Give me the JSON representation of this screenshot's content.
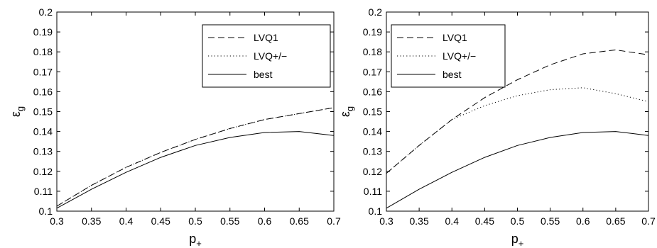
{
  "chart_data": [
    {
      "type": "line",
      "xlabel": "p",
      "xlabel_sub": "+",
      "ylabel": "ε",
      "ylabel_sub": "g",
      "xlim": [
        0.3,
        0.7
      ],
      "ylim": [
        0.1,
        0.2
      ],
      "x_ticks": [
        "0.3",
        "0.35",
        "0.4",
        "0.45",
        "0.5",
        "0.55",
        "0.6",
        "0.65",
        "0.7"
      ],
      "y_ticks": [
        "0.1",
        "0.11",
        "0.12",
        "0.13",
        "0.14",
        "0.15",
        "0.16",
        "0.17",
        "0.18",
        "0.19",
        "0.2"
      ],
      "grid": false,
      "legend_position": "top-right",
      "x": [
        0.3,
        0.35,
        0.4,
        0.45,
        0.5,
        0.55,
        0.6,
        0.65,
        0.7
      ],
      "series": [
        {
          "name": "LVQ1",
          "line_style": "dashed",
          "values": [
            0.1025,
            0.113,
            0.122,
            0.1295,
            0.136,
            0.1415,
            0.146,
            0.149,
            0.152
          ]
        },
        {
          "name": "LVQ+/−",
          "line_style": "dotted",
          "values": [
            0.1025,
            0.113,
            0.122,
            0.1295,
            0.136,
            0.1415,
            0.146,
            0.149,
            0.152
          ]
        },
        {
          "name": "best",
          "line_style": "solid",
          "values": [
            0.1015,
            0.111,
            0.1195,
            0.127,
            0.133,
            0.137,
            0.1395,
            0.14,
            0.138
          ]
        }
      ]
    },
    {
      "type": "line",
      "xlabel": "p",
      "xlabel_sub": "+",
      "ylabel": "ε",
      "ylabel_sub": "g",
      "xlim": [
        0.3,
        0.7
      ],
      "ylim": [
        0.1,
        0.2
      ],
      "x_ticks": [
        "0.3",
        "0.35",
        "0.4",
        "0.45",
        "0.5",
        "0.55",
        "0.6",
        "0.65",
        "0.7"
      ],
      "y_ticks": [
        "0.1",
        "0.11",
        "0.12",
        "0.13",
        "0.14",
        "0.15",
        "0.16",
        "0.17",
        "0.18",
        "0.19",
        "0.2"
      ],
      "grid": false,
      "legend_position": "top-left",
      "x": [
        0.3,
        0.35,
        0.4,
        0.45,
        0.5,
        0.55,
        0.6,
        0.65,
        0.7
      ],
      "series": [
        {
          "name": "LVQ1",
          "line_style": "dashed",
          "values": [
            0.119,
            0.133,
            0.146,
            0.157,
            0.166,
            0.1735,
            0.179,
            0.181,
            0.1785
          ]
        },
        {
          "name": "LVQ+/−",
          "line_style": "dotted",
          "values": [
            0.119,
            0.133,
            0.146,
            0.153,
            0.158,
            0.161,
            0.162,
            0.159,
            0.155
          ]
        },
        {
          "name": "best",
          "line_style": "solid",
          "values": [
            0.1015,
            0.111,
            0.1195,
            0.127,
            0.133,
            0.137,
            0.1395,
            0.14,
            0.138
          ]
        }
      ]
    }
  ]
}
